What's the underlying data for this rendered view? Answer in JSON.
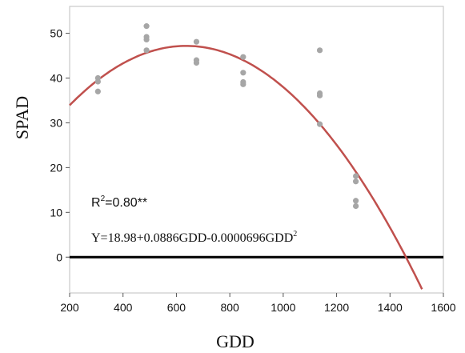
{
  "chart_data": {
    "type": "scatter",
    "title": "",
    "xlabel": "GDD",
    "ylabel": "SPAD",
    "xlim": [
      200,
      1600
    ],
    "ylim": [
      -8,
      56
    ],
    "x_ticks": [
      200,
      400,
      600,
      800,
      1000,
      1200,
      1400,
      1600
    ],
    "y_ticks": [
      0,
      10,
      20,
      30,
      40,
      50
    ],
    "grid": false,
    "legend": "none",
    "colors": {
      "points": "#a6a6a6",
      "fit_curve": "#c0504d",
      "zero_line": "#000000",
      "frame": "#bfbfbf"
    },
    "points": [
      {
        "x": 306,
        "y": 40.0
      },
      {
        "x": 306,
        "y": 39.2
      },
      {
        "x": 306,
        "y": 37.0
      },
      {
        "x": 488,
        "y": 51.6
      },
      {
        "x": 488,
        "y": 49.2
      },
      {
        "x": 488,
        "y": 48.6
      },
      {
        "x": 488,
        "y": 46.2
      },
      {
        "x": 675,
        "y": 48.1
      },
      {
        "x": 675,
        "y": 44.0
      },
      {
        "x": 675,
        "y": 43.4
      },
      {
        "x": 850,
        "y": 44.7
      },
      {
        "x": 850,
        "y": 41.2
      },
      {
        "x": 850,
        "y": 39.1
      },
      {
        "x": 850,
        "y": 38.6
      },
      {
        "x": 1137,
        "y": 46.2
      },
      {
        "x": 1137,
        "y": 36.6
      },
      {
        "x": 1137,
        "y": 36.1
      },
      {
        "x": 1137,
        "y": 29.7
      },
      {
        "x": 1272,
        "y": 18.1
      },
      {
        "x": 1272,
        "y": 16.9
      },
      {
        "x": 1272,
        "y": 12.6
      },
      {
        "x": 1272,
        "y": 11.4
      }
    ],
    "fit": {
      "intercept": 18.98,
      "linear": 0.0886,
      "quadratic": -6.96e-05,
      "x_range": [
        200,
        1520
      ]
    },
    "reference_line_y": 0,
    "annotations": {
      "r2_prefix": "R",
      "r2_sup": "2",
      "r2_suffix": "=0.80**",
      "eq_prefix": "Y=18.98+0.0886GDD-0.0000696GDD",
      "eq_sup": "2"
    }
  }
}
